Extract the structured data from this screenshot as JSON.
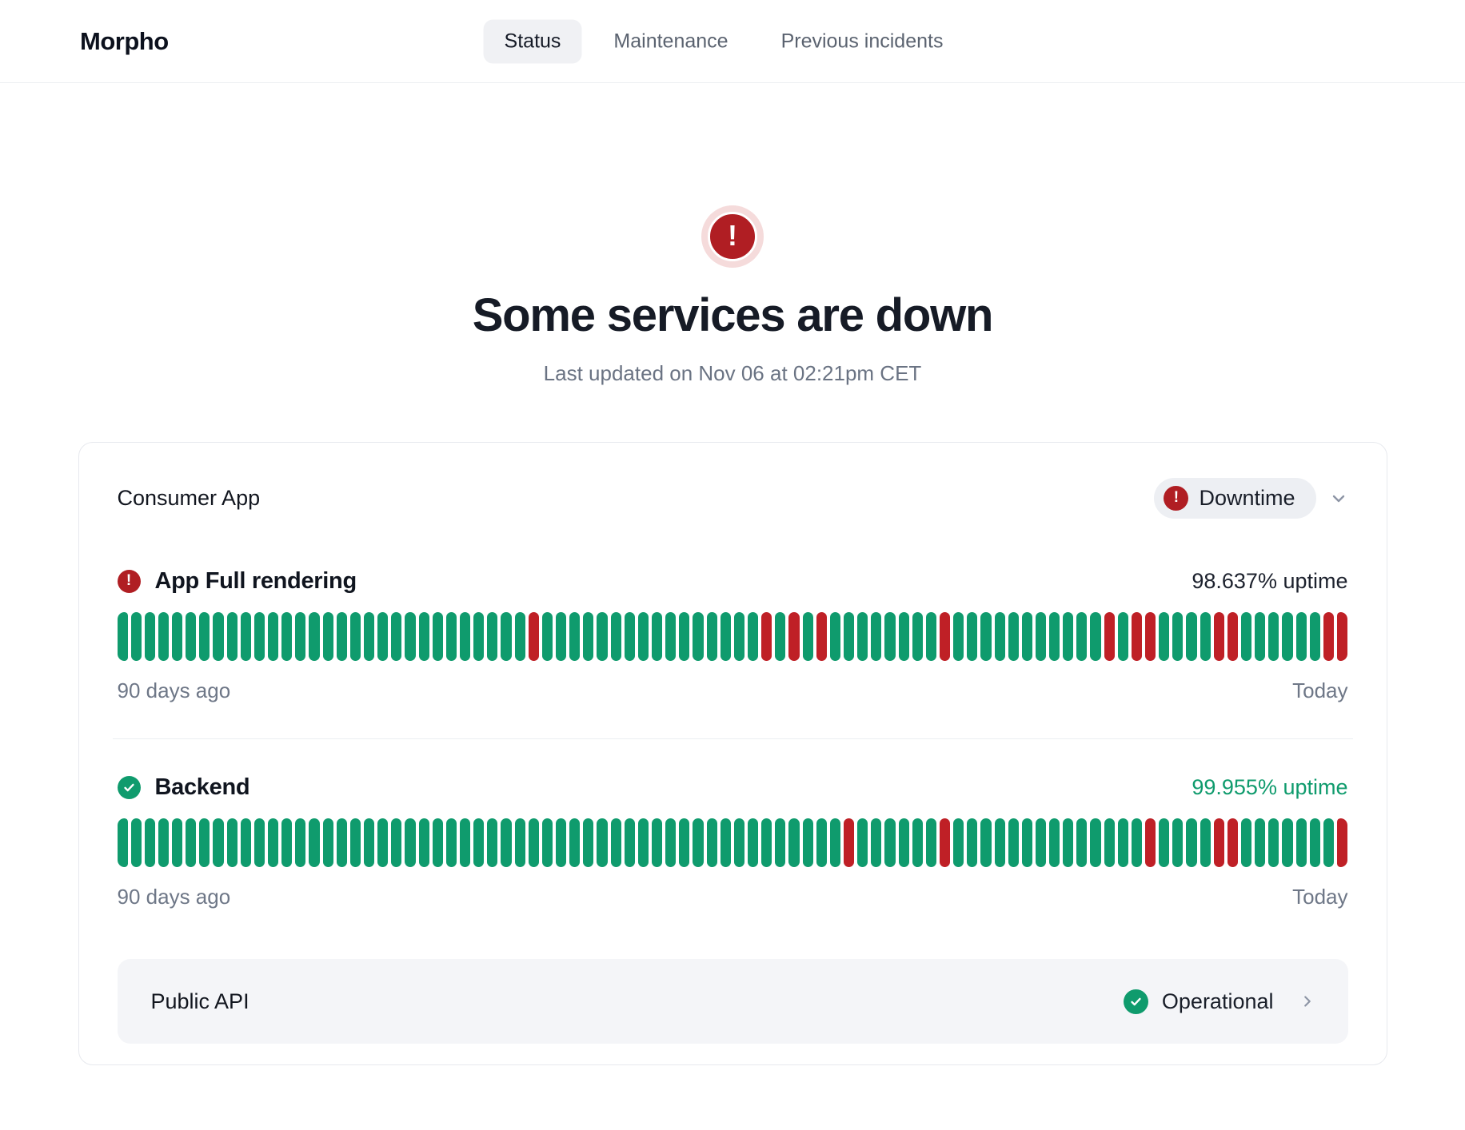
{
  "colors": {
    "green": "#0f9b6d",
    "red": "#bf2026",
    "icon_red": "#b01e23"
  },
  "header": {
    "logo": "Morpho",
    "tabs": [
      {
        "label": "Status",
        "active": true
      },
      {
        "label": "Maintenance",
        "active": false
      },
      {
        "label": "Previous incidents",
        "active": false
      }
    ]
  },
  "hero": {
    "title": "Some services are down",
    "subtitle": "Last updated on Nov 06 at 02:21pm CET"
  },
  "status_card": {
    "group_name": "Consumer App",
    "group_status": "Downtime",
    "services": [
      {
        "name": "App Full rendering",
        "status": "down",
        "uptime": "98.637% uptime",
        "start": "90 days ago",
        "end": "Today",
        "days": 90,
        "down_days": [
          30,
          47,
          49,
          51,
          60,
          72,
          74,
          75,
          80,
          81,
          88,
          89
        ]
      },
      {
        "name": "Backend",
        "status": "operational",
        "uptime": "99.955% uptime",
        "start": "90 days ago",
        "end": "Today",
        "days": 90,
        "down_days": [
          53,
          60,
          75,
          80,
          81,
          89
        ]
      }
    ],
    "public_api": {
      "name": "Public API",
      "status": "Operational"
    }
  }
}
